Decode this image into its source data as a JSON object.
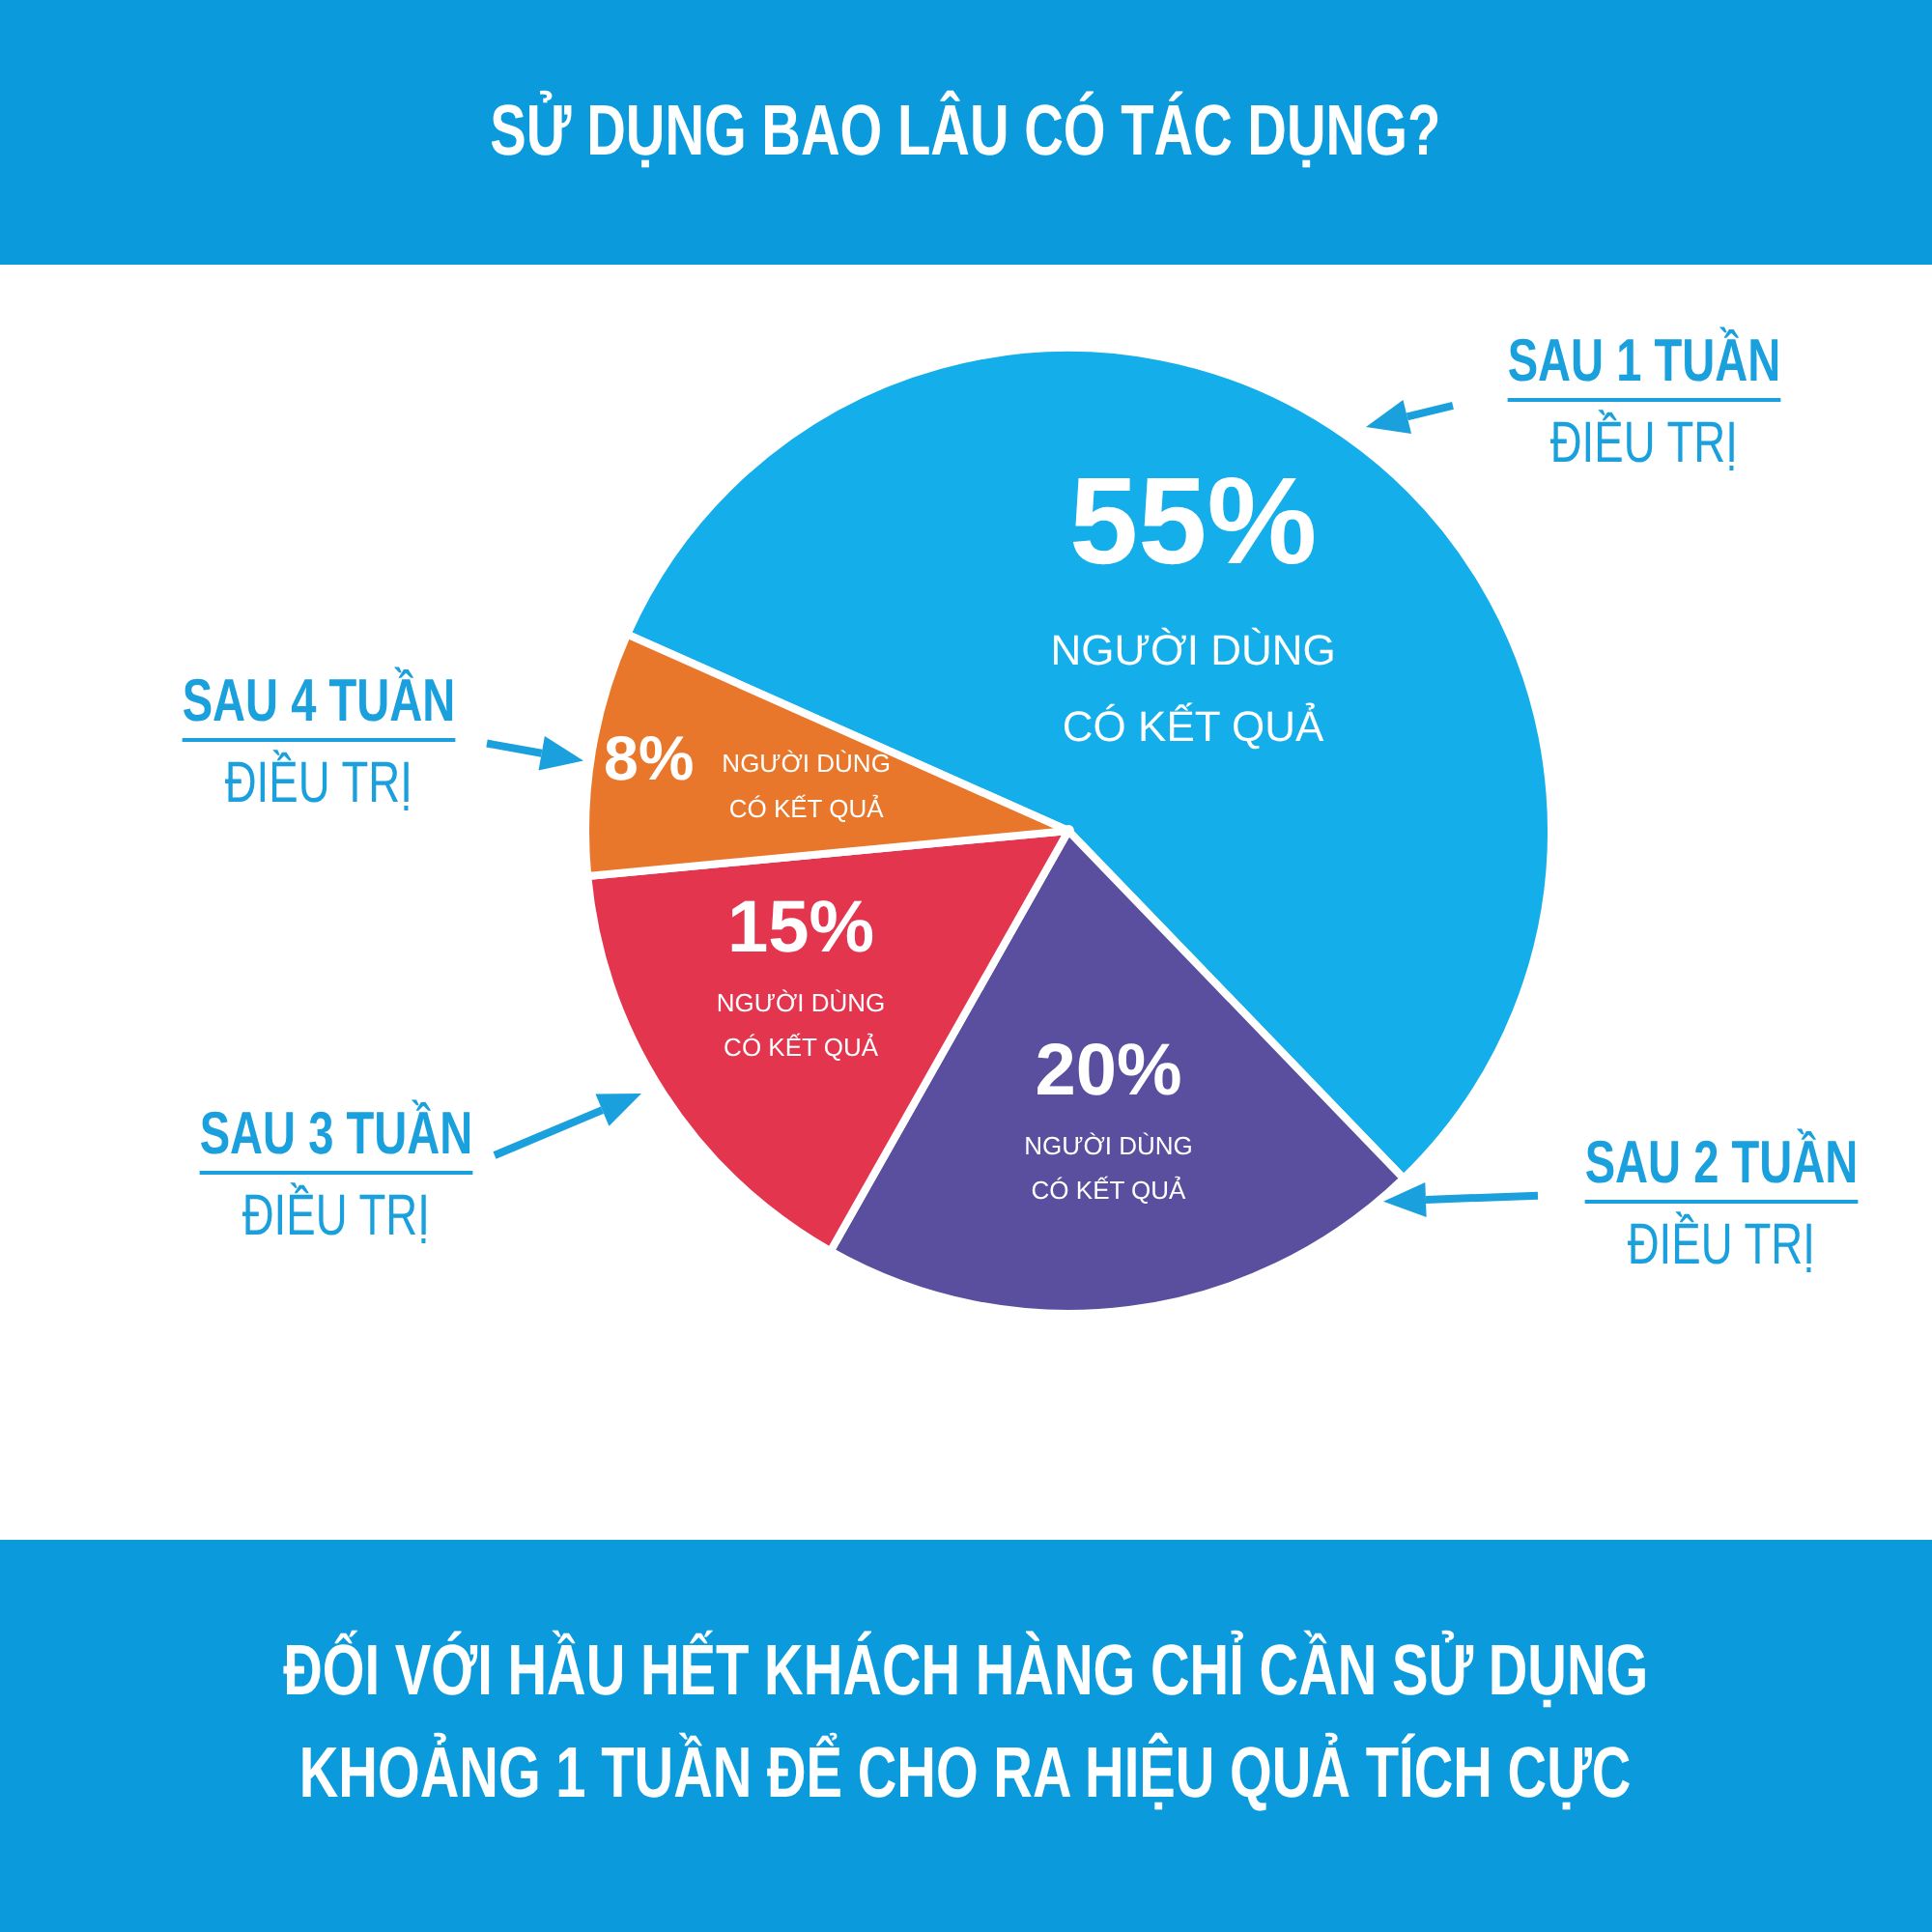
{
  "chart_data": {
    "type": "pie",
    "title": "SỬ DỤNG BAO LÂU CÓ TÁC DỤNG?",
    "categories": [
      "SAU 1 TUẦN\nĐIỀU TRỊ",
      "SAU 2 TUẦN\nĐIỀU TRỊ",
      "SAU 3 TUẦN\nĐIỀU TRỊ",
      "SAU 4 TUẦN\nĐIỀU TRỊ"
    ],
    "values": [
      55,
      20,
      15,
      8
    ],
    "colors": [
      "#14aeea",
      "#5a4f9f",
      "#e4354f",
      "#e9772b"
    ],
    "value_labels": [
      "55%\nNGƯỜI DÙNG\nCÓ KẾT QUẢ",
      "20%\nNGƯỜI DÙNG\nCÓ KẾT QUẢ",
      "15%\nNGƯỜI DÙNG\nCÓ KẾT QUẢ",
      "8%\nNGƯỜI DÙNG\nCÓ KẾT QUẢ"
    ],
    "annotations": [
      "ĐỐI VỚI HẦU HẾT KHÁCH HÀNG CHỈ CẦN SỬ DỤNG\nKHOẢNG 1 TUẦN ĐỂ CHO RA HIỆU QUẢ TÍCH CỰC"
    ]
  }
}
